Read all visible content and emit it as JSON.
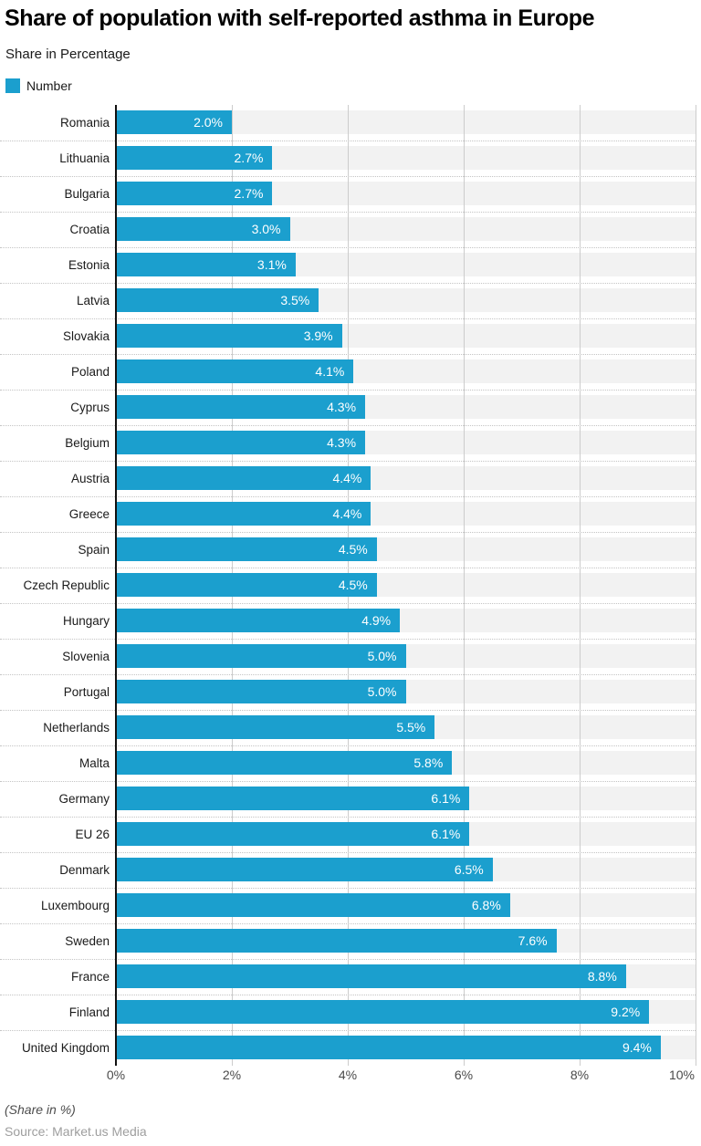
{
  "header": {
    "title": "Share of population with self-reported asthma in Europe",
    "subtitle": "Share in Percentage",
    "legend": {
      "label": "Number",
      "color": "#1b9fce"
    }
  },
  "chart_data": {
    "type": "bar",
    "orientation": "horizontal",
    "title": "Share of population with self-reported asthma in Europe",
    "subtitle": "Share in Percentage",
    "series_name": "Number",
    "categories": [
      "Romania",
      "Lithuania",
      "Bulgaria",
      "Croatia",
      "Estonia",
      "Latvia",
      "Slovakia",
      "Poland",
      "Cyprus",
      "Belgium",
      "Austria",
      "Greece",
      "Spain",
      "Czech Republic",
      "Hungary",
      "Slovenia",
      "Portugal",
      "Netherlands",
      "Malta",
      "Germany",
      "EU 26",
      "Denmark",
      "Luxembourg",
      "Sweden",
      "France",
      "Finland",
      "United Kingdom"
    ],
    "values": [
      2.0,
      2.7,
      2.7,
      3.0,
      3.1,
      3.5,
      3.9,
      4.1,
      4.3,
      4.3,
      4.4,
      4.4,
      4.5,
      4.5,
      4.9,
      5.0,
      5.0,
      5.5,
      5.8,
      6.1,
      6.1,
      6.5,
      6.8,
      7.6,
      8.8,
      9.2,
      9.4
    ],
    "value_labels": [
      "2.0%",
      "2.7%",
      "2.7%",
      "3.0%",
      "3.1%",
      "3.5%",
      "3.9%",
      "4.1%",
      "4.3%",
      "4.3%",
      "4.4%",
      "4.4%",
      "4.5%",
      "4.5%",
      "4.9%",
      "5.0%",
      "5.0%",
      "5.5%",
      "5.8%",
      "6.1%",
      "6.1%",
      "6.5%",
      "6.8%",
      "7.6%",
      "8.8%",
      "9.2%",
      "9.4%"
    ],
    "xlim": [
      0,
      10
    ],
    "x_ticks": [
      0,
      2,
      4,
      6,
      8,
      10
    ],
    "x_tick_labels": [
      "0%",
      "2%",
      "4%",
      "6%",
      "8%",
      "10%"
    ],
    "grid": true,
    "legend_position": "top-left",
    "bar_color": "#1b9fce",
    "track_color": "#f2f2f2",
    "grid_color": "#cccccc",
    "axis_line_color": "#111111",
    "value_label_color": "#ffffff"
  },
  "footer": {
    "note": "(Share in %)",
    "source": "Source: Market.us Media"
  }
}
